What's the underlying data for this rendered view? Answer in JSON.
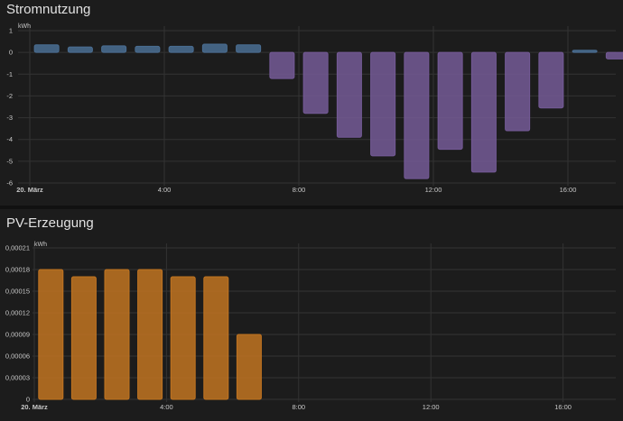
{
  "chart_data": [
    {
      "type": "bar",
      "title": "Stromnutzung",
      "ylabel": "kWh",
      "ylim": [
        -6,
        1
      ],
      "yticks": [
        "1",
        "0",
        "-1",
        "-2",
        "-3",
        "-4",
        "-5",
        "-6"
      ],
      "xticks": [
        "20. März",
        "4:00",
        "8:00",
        "12:00",
        "16:00"
      ],
      "grid": true,
      "positive_color": "#4a6e93",
      "negative_color": "#745a97",
      "hours": [
        0,
        1,
        2,
        3,
        4,
        5,
        6,
        7,
        8,
        9,
        10,
        11,
        12,
        13,
        14,
        15,
        16,
        17
      ],
      "values": [
        0.35,
        0.25,
        0.3,
        0.28,
        0.28,
        0.38,
        0.35,
        -1.2,
        -2.8,
        -3.9,
        -4.75,
        -5.8,
        -4.45,
        -5.5,
        -3.6,
        -2.55,
        0.1,
        -0.3
      ]
    },
    {
      "type": "bar",
      "title": "PV-Erzeugung",
      "ylabel": "kWh",
      "ylim": [
        0,
        0.00021
      ],
      "yticks": [
        "0,00021",
        "0,00018",
        "0,00015",
        "0,00012",
        "0,00009",
        "0,00006",
        "0,00003",
        "0"
      ],
      "xticks": [
        "20. März",
        "4:00",
        "8:00",
        "12:00",
        "16:00"
      ],
      "grid": true,
      "bar_color": "#c17421",
      "hours": [
        0,
        1,
        2,
        3,
        4,
        5,
        6
      ],
      "values": [
        0.00018,
        0.00017,
        0.00018,
        0.00018,
        0.00017,
        0.00017,
        9e-05
      ]
    }
  ]
}
